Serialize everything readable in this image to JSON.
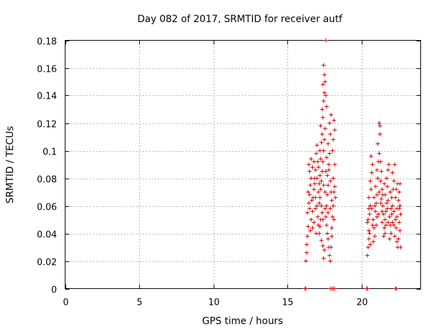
{
  "chart_data": {
    "type": "scatter",
    "title": "Day 082 of 2017, SRMTID for receiver autf",
    "xlabel": "GPS time / hours",
    "ylabel": "SRMTID / TECUs",
    "xlim": [
      0,
      24
    ],
    "ylim": [
      0,
      0.18
    ],
    "xticks": [
      0,
      5,
      10,
      15,
      20
    ],
    "xtick_labels": [
      "0",
      "5",
      "10",
      "15",
      "20"
    ],
    "yticks": [
      0,
      0.02,
      0.04,
      0.06,
      0.08,
      0.1,
      0.12,
      0.14,
      0.16,
      0.18
    ],
    "ytick_labels": [
      "0",
      "0.02",
      "0.04",
      "0.06",
      "0.08",
      "0.1",
      "0.12",
      "0.14",
      "0.16",
      "0.18"
    ],
    "grid": true,
    "marker": "+",
    "color": "#e00000",
    "series": [
      {
        "points": [
          [
            16.25,
            0.02
          ],
          [
            16.3,
            0.026
          ],
          [
            16.3,
            0.032
          ],
          [
            16.35,
            0.038
          ],
          [
            16.4,
            0.045
          ],
          [
            16.35,
            0.055
          ],
          [
            16.45,
            0.062
          ],
          [
            16.5,
            0.068
          ],
          [
            16.4,
            0.07
          ],
          [
            16.55,
            0.075
          ],
          [
            16.5,
            0.085
          ],
          [
            16.45,
            0.09
          ],
          [
            16.6,
            0.094
          ],
          [
            16.5,
            0.058
          ],
          [
            16.6,
            0.05
          ],
          [
            16.7,
            0.044
          ],
          [
            16.8,
            0.048
          ],
          [
            16.7,
            0.056
          ],
          [
            16.75,
            0.066
          ],
          [
            16.8,
            0.072
          ],
          [
            16.85,
            0.08
          ],
          [
            16.9,
            0.086
          ],
          [
            16.8,
            0.092
          ],
          [
            16.95,
            0.098
          ],
          [
            17.0,
            0.104
          ],
          [
            16.9,
            0.066
          ],
          [
            17.0,
            0.06
          ],
          [
            17.05,
            0.052
          ],
          [
            17.1,
            0.046
          ],
          [
            16.95,
            0.04
          ],
          [
            17.1,
            0.07
          ],
          [
            17.15,
            0.076
          ],
          [
            17.2,
            0.082
          ],
          [
            17.1,
            0.088
          ],
          [
            17.25,
            0.094
          ],
          [
            17.2,
            0.1
          ],
          [
            17.3,
            0.106
          ],
          [
            17.35,
            0.112
          ],
          [
            17.25,
            0.118
          ],
          [
            17.4,
            0.124
          ],
          [
            17.35,
            0.13
          ],
          [
            17.45,
            0.136
          ],
          [
            17.5,
            0.142
          ],
          [
            17.4,
            0.148
          ],
          [
            17.5,
            0.155
          ],
          [
            17.45,
            0.162
          ],
          [
            17.55,
            0.15
          ],
          [
            17.6,
            0.14
          ],
          [
            17.6,
            0.18
          ],
          [
            17.55,
            0.116
          ],
          [
            17.5,
            0.108
          ],
          [
            17.45,
            0.1
          ],
          [
            17.4,
            0.092
          ],
          [
            17.35,
            0.085
          ],
          [
            17.3,
            0.078
          ],
          [
            17.25,
            0.072
          ],
          [
            17.2,
            0.066
          ],
          [
            17.3,
            0.06
          ],
          [
            17.35,
            0.055
          ],
          [
            17.4,
            0.05
          ],
          [
            17.2,
            0.045
          ],
          [
            17.15,
            0.04
          ],
          [
            17.3,
            0.035
          ],
          [
            17.4,
            0.031
          ],
          [
            17.5,
            0.028
          ],
          [
            17.45,
            0.022
          ],
          [
            17.6,
            0.052
          ],
          [
            17.65,
            0.06
          ],
          [
            17.7,
            0.068
          ],
          [
            17.75,
            0.075
          ],
          [
            17.7,
            0.082
          ],
          [
            17.8,
            0.09
          ],
          [
            17.85,
            0.098
          ],
          [
            17.75,
            0.105
          ],
          [
            17.9,
            0.112
          ],
          [
            17.85,
            0.12
          ],
          [
            17.95,
            0.126
          ],
          [
            17.65,
            0.132
          ],
          [
            17.8,
            0.086
          ],
          [
            17.9,
            0.078
          ],
          [
            17.95,
            0.07
          ],
          [
            18.0,
            0.064
          ],
          [
            17.9,
            0.058
          ],
          [
            18.05,
            0.052
          ],
          [
            18.0,
            0.044
          ],
          [
            18.1,
            0.06
          ],
          [
            18.15,
            0.07
          ],
          [
            18.1,
            0.08
          ],
          [
            18.2,
            0.09
          ],
          [
            18.05,
            0.1
          ],
          [
            18.1,
            0.108
          ],
          [
            18.2,
            0.115
          ],
          [
            18.15,
            0.122
          ],
          [
            17.7,
            0.04
          ],
          [
            17.75,
            0.036
          ],
          [
            17.8,
            0.03
          ],
          [
            17.85,
            0.024
          ],
          [
            17.9,
            0.02
          ],
          [
            17.95,
            0.03
          ],
          [
            18.0,
            0.038
          ],
          [
            16.6,
            0.08
          ],
          [
            16.7,
            0.088
          ],
          [
            16.9,
            0.058
          ],
          [
            17.0,
            0.08
          ],
          [
            17.15,
            0.062
          ],
          [
            17.25,
            0.05
          ],
          [
            17.55,
            0.07
          ],
          [
            17.6,
            0.085
          ],
          [
            17.65,
            0.095
          ],
          [
            18.2,
            0.074
          ],
          [
            18.25,
            0.066
          ],
          [
            16.65,
            0.064
          ],
          [
            16.85,
            0.076
          ],
          [
            17.05,
            0.092
          ],
          [
            17.45,
            0.075
          ],
          [
            17.55,
            0.058
          ],
          [
            17.65,
            0.046
          ],
          [
            17.75,
            0.055
          ],
          [
            18.15,
            0.05
          ],
          [
            16.55,
            0.042
          ],
          [
            20.4,
            0.024
          ],
          [
            20.45,
            0.03
          ],
          [
            20.5,
            0.036
          ],
          [
            20.5,
            0.042
          ],
          [
            20.4,
            0.048
          ],
          [
            20.55,
            0.054
          ],
          [
            20.6,
            0.06
          ],
          [
            20.5,
            0.066
          ],
          [
            20.65,
            0.072
          ],
          [
            20.6,
            0.078
          ],
          [
            20.7,
            0.084
          ],
          [
            20.75,
            0.09
          ],
          [
            20.65,
            0.096
          ],
          [
            20.8,
            0.05
          ],
          [
            20.85,
            0.044
          ],
          [
            20.9,
            0.038
          ],
          [
            20.8,
            0.034
          ],
          [
            20.95,
            0.056
          ],
          [
            21.0,
            0.062
          ],
          [
            21.05,
            0.068
          ],
          [
            20.95,
            0.074
          ],
          [
            21.1,
            0.08
          ],
          [
            21.05,
            0.086
          ],
          [
            21.15,
            0.092
          ],
          [
            21.2,
            0.098
          ],
          [
            21.1,
            0.105
          ],
          [
            21.25,
            0.112
          ],
          [
            21.2,
            0.12
          ],
          [
            21.25,
            0.118
          ],
          [
            21.3,
            0.092
          ],
          [
            21.35,
            0.085
          ],
          [
            21.3,
            0.078
          ],
          [
            21.4,
            0.072
          ],
          [
            21.35,
            0.065
          ],
          [
            21.45,
            0.06
          ],
          [
            21.5,
            0.054
          ],
          [
            21.4,
            0.048
          ],
          [
            21.55,
            0.044
          ],
          [
            21.5,
            0.038
          ],
          [
            21.6,
            0.05
          ],
          [
            21.65,
            0.056
          ],
          [
            21.7,
            0.062
          ],
          [
            21.6,
            0.068
          ],
          [
            21.75,
            0.074
          ],
          [
            21.7,
            0.08
          ],
          [
            21.8,
            0.086
          ],
          [
            21.85,
            0.09
          ],
          [
            21.75,
            0.058
          ],
          [
            21.9,
            0.052
          ],
          [
            21.95,
            0.046
          ],
          [
            22.0,
            0.04
          ],
          [
            21.9,
            0.036
          ],
          [
            22.05,
            0.054
          ],
          [
            22.1,
            0.06
          ],
          [
            22.05,
            0.066
          ],
          [
            22.15,
            0.072
          ],
          [
            22.2,
            0.078
          ],
          [
            22.1,
            0.084
          ],
          [
            22.25,
            0.09
          ],
          [
            22.2,
            0.056
          ],
          [
            22.3,
            0.05
          ],
          [
            22.35,
            0.044
          ],
          [
            22.25,
            0.038
          ],
          [
            22.4,
            0.034
          ],
          [
            22.45,
            0.03
          ],
          [
            22.4,
            0.058
          ],
          [
            22.5,
            0.064
          ],
          [
            22.55,
            0.07
          ],
          [
            22.45,
            0.076
          ],
          [
            22.6,
            0.06
          ],
          [
            22.65,
            0.054
          ],
          [
            22.55,
            0.048
          ],
          [
            22.6,
            0.042
          ],
          [
            22.5,
            0.036
          ],
          [
            22.65,
            0.03
          ],
          [
            22.6,
            0.076
          ],
          [
            20.45,
            0.05
          ],
          [
            20.55,
            0.04
          ],
          [
            20.7,
            0.058
          ],
          [
            20.85,
            0.066
          ],
          [
            21.0,
            0.046
          ],
          [
            21.15,
            0.054
          ],
          [
            21.3,
            0.062
          ],
          [
            21.45,
            0.068
          ],
          [
            21.55,
            0.076
          ],
          [
            21.65,
            0.046
          ],
          [
            21.8,
            0.064
          ],
          [
            21.95,
            0.07
          ],
          [
            22.1,
            0.048
          ],
          [
            22.3,
            0.066
          ],
          [
            22.35,
            0.072
          ],
          [
            20.6,
            0.032
          ],
          [
            20.75,
            0.046
          ],
          [
            20.9,
            0.06
          ],
          [
            21.05,
            0.052
          ],
          [
            21.2,
            0.07
          ],
          [
            21.4,
            0.056
          ],
          [
            21.6,
            0.04
          ],
          [
            21.8,
            0.048
          ],
          [
            22.0,
            0.058
          ],
          [
            22.2,
            0.046
          ],
          [
            22.4,
            0.052
          ],
          [
            22.55,
            0.058
          ],
          [
            20.5,
            0.058
          ],
          [
            16.2,
            0
          ],
          [
            16.25,
            0
          ],
          [
            17.9,
            0
          ],
          [
            18.0,
            0
          ],
          [
            18.1,
            0
          ],
          [
            18.2,
            0
          ],
          [
            20.35,
            0
          ],
          [
            20.4,
            0
          ],
          [
            22.3,
            0
          ],
          [
            22.35,
            0
          ]
        ]
      }
    ]
  }
}
